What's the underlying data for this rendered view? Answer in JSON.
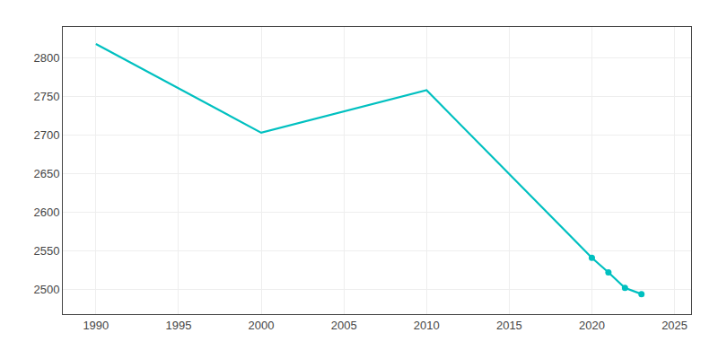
{
  "chart_data": {
    "type": "line",
    "x": [
      1990,
      2000,
      2010,
      2020,
      2021,
      2022,
      2023
    ],
    "series": [
      {
        "color": "#00C0C0",
        "line_style": "solid",
        "values": [
          2818,
          2703,
          2758,
          2541,
          2522,
          2502,
          2494
        ]
      },
      {
        "type": "scatter",
        "color": "#00C0C0",
        "marker": "circle",
        "values": [
          null,
          null,
          null,
          2541,
          2522,
          2502,
          2494
        ]
      }
    ],
    "xlim": [
      1988,
      2026
    ],
    "ylim": [
      2468,
      2840
    ],
    "xticks": [
      1990,
      1995,
      2000,
      2005,
      2010,
      2015,
      2020,
      2025
    ],
    "yticks": [
      2500,
      2550,
      2600,
      2650,
      2700,
      2750,
      2800
    ],
    "grid": true
  }
}
